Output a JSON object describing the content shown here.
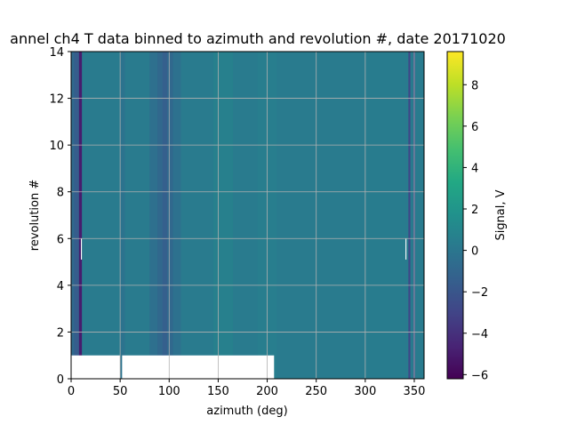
{
  "chart_data": {
    "type": "heatmap",
    "title": "annel ch4 T data binned to azimuth and revolution #, date 20171020",
    "xlabel": "azimuth (deg)",
    "ylabel": "revolution #",
    "xlim": [
      0,
      360
    ],
    "ylim": [
      0,
      14
    ],
    "xticks": [
      0,
      50,
      100,
      150,
      200,
      250,
      300,
      350
    ],
    "yticks": [
      0,
      2,
      4,
      6,
      8,
      10,
      12,
      14
    ],
    "grid": true,
    "colormap": "viridis",
    "colorbar": {
      "label": "Signal, V",
      "vmin": -6.2,
      "vmax": 9.6,
      "ticks": [
        -6,
        -4,
        -2,
        0,
        2,
        4,
        6,
        8
      ]
    },
    "background_value": 0.3,
    "azimuth_bands": [
      {
        "x0": 0,
        "x1": 3,
        "value": -0.8
      },
      {
        "x0": 3,
        "x1": 8,
        "value": -1.6
      },
      {
        "x0": 8,
        "x1": 11,
        "value": -5.0
      },
      {
        "x0": 50,
        "x1": 55,
        "value": -0.2
      },
      {
        "x0": 80,
        "x1": 88,
        "value": -0.4
      },
      {
        "x0": 88,
        "x1": 93,
        "value": -0.9
      },
      {
        "x0": 93,
        "x1": 98,
        "value": -1.4
      },
      {
        "x0": 98,
        "x1": 104,
        "value": -0.9
      },
      {
        "x0": 104,
        "x1": 112,
        "value": -0.3
      },
      {
        "x0": 145,
        "x1": 165,
        "value": 0.6
      },
      {
        "x0": 190,
        "x1": 210,
        "value": 0.5
      },
      {
        "x0": 300,
        "x1": 340,
        "value": 0.4
      },
      {
        "x0": 344,
        "x1": 346,
        "value": -2.8
      },
      {
        "x0": 349,
        "x1": 351,
        "value": -2.0
      }
    ],
    "missing_regions": [
      {
        "x0": 0,
        "x1": 50,
        "y0": 0,
        "y1": 1
      },
      {
        "x0": 52,
        "x1": 207,
        "y0": 0,
        "y1": 1
      },
      {
        "x0": 10,
        "x1": 11,
        "y0": 5.1,
        "y1": 6.0
      },
      {
        "x0": 341,
        "x1": 342,
        "y0": 5.1,
        "y1": 6.0
      }
    ]
  }
}
